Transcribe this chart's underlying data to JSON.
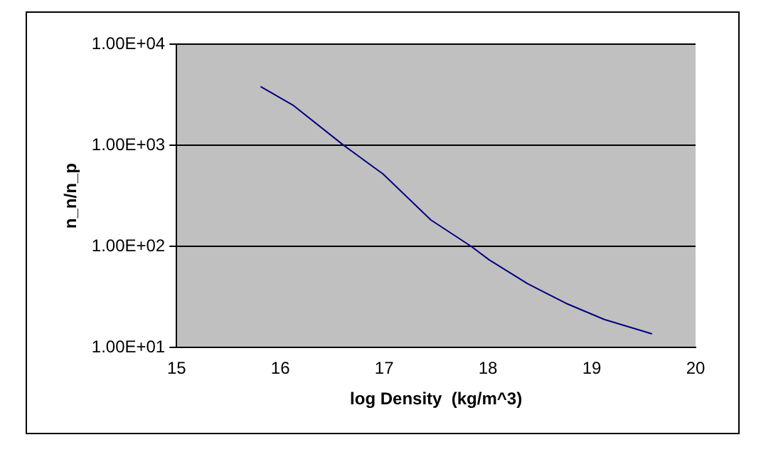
{
  "chart_data": {
    "type": "line",
    "xlabel": "log Density  (kg/m^3)",
    "ylabel": "n_n/n_p",
    "x": [
      15.81,
      16.12,
      16.61,
      16.99,
      17.45,
      17.84,
      18.01,
      18.38,
      18.75,
      19.12,
      19.58
    ],
    "series": [
      {
        "color": "#000080",
        "values": [
          3800,
          2500,
          1000,
          520,
          183,
          100,
          74,
          43,
          27.5,
          19,
          13.7
        ]
      }
    ],
    "xlim": [
      15,
      20
    ],
    "xticks": [
      15,
      16,
      17,
      18,
      19,
      20
    ],
    "ylim": [
      10,
      10000
    ],
    "yticks": [
      {
        "value": 10,
        "label": "1.00E+01"
      },
      {
        "value": 100,
        "label": "1.00E+02"
      },
      {
        "value": 1000,
        "label": "1.00E+03"
      },
      {
        "value": 10000,
        "label": "1.00E+04"
      }
    ],
    "log": "y",
    "grid": "y",
    "legend": false,
    "marker": "none",
    "line_style": "solid"
  }
}
